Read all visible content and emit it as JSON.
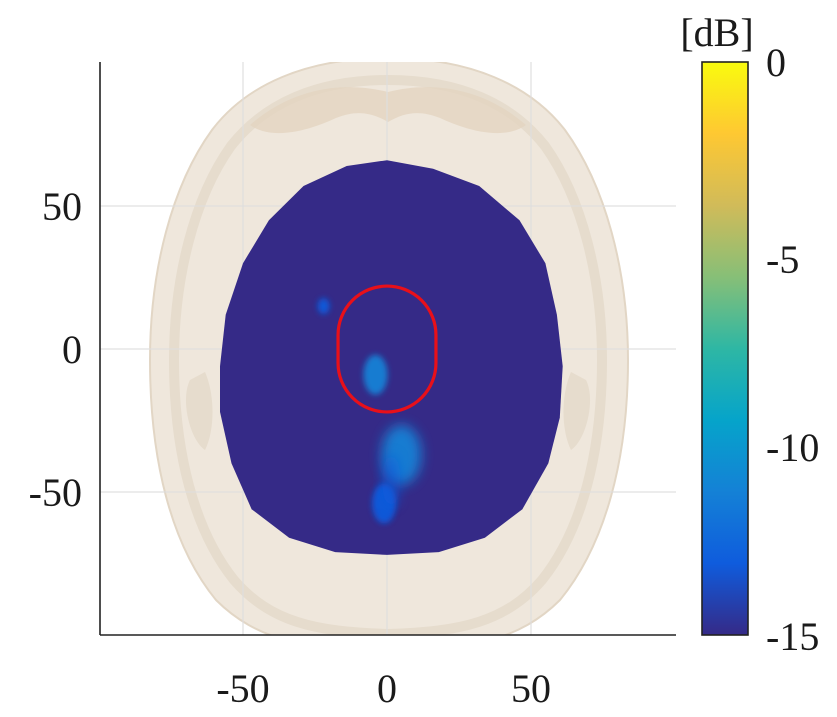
{
  "chart_data": {
    "type": "heatmap",
    "title": "",
    "xlabel": "",
    "ylabel": "",
    "xlim": [
      -100,
      100
    ],
    "ylim": [
      -100,
      100
    ],
    "x_ticks": [
      -50,
      0,
      50
    ],
    "y_ticks": [
      -50,
      0,
      50
    ],
    "x_tick_labels": [
      "-50",
      "0",
      "50"
    ],
    "y_tick_labels": [
      "-50",
      "0",
      "50"
    ],
    "grid": true,
    "colorbar": {
      "unit_label": "[dB]",
      "range": [
        -15,
        0
      ],
      "ticks": [
        0,
        -5,
        -10,
        -15
      ],
      "tick_labels": [
        "0",
        "-5",
        "-10",
        "-15"
      ],
      "colormap": "parula",
      "stops": [
        "#352a87",
        "#0f5cdd",
        "#1481d6",
        "#06a4ca",
        "#2eb7a4",
        "#87bf77",
        "#d1bb59",
        "#fec832",
        "#f9fb0e"
      ]
    },
    "background_level_db": -15,
    "hotspots": [
      {
        "x": 5,
        "y": -37,
        "level_db": -10.5
      },
      {
        "x": -1,
        "y": -54,
        "level_db": -12.5
      },
      {
        "x": -4,
        "y": -9,
        "level_db": -12.0
      },
      {
        "x": -22,
        "y": 15,
        "level_db": -14.0
      }
    ],
    "target_region": {
      "shape": "stadium",
      "x_range": [
        -17,
        17
      ],
      "y_range": [
        -22,
        22
      ],
      "color": "#e8101a"
    },
    "anatomy_overlay": "skull-cross-section"
  }
}
